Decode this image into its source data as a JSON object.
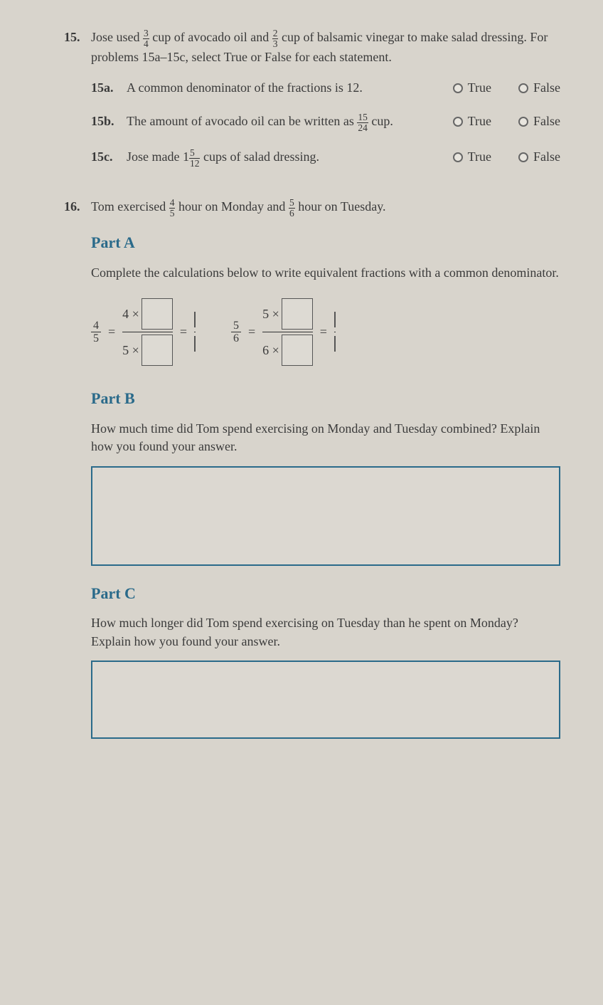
{
  "q15": {
    "number": "15.",
    "text_pre": "Jose used ",
    "frac1_n": "3",
    "frac1_d": "4",
    "text_mid1": " cup of avocado oil and ",
    "frac2_n": "2",
    "frac2_d": "3",
    "text_mid2": " cup of balsamic vinegar to make salad dressing. For problems 15a–15c, select True or False for each statement.",
    "a": {
      "label": "15a.",
      "text": "A common denominator of the fractions is 12."
    },
    "b": {
      "label": "15b.",
      "text_pre": "The amount of avocado oil can be written as ",
      "frac_n": "15",
      "frac_d": "24",
      "text_post": " cup."
    },
    "c": {
      "label": "15c.",
      "text_pre": "Jose made 1",
      "frac_n": "5",
      "frac_d": "12",
      "text_post": " cups of salad dressing."
    },
    "true_label": "True",
    "false_label": "False"
  },
  "q16": {
    "number": "16.",
    "text_pre": "Tom exercised ",
    "frac1_n": "4",
    "frac1_d": "5",
    "text_mid1": " hour on Monday and ",
    "frac2_n": "5",
    "frac2_d": "6",
    "text_post": " hour on Tuesday.",
    "partA": {
      "header": "Part A",
      "instr": "Complete the calculations below to write equivalent fractions with a common denominator.",
      "eq1": {
        "lhs_n": "4",
        "lhs_d": "5",
        "mul_n": "4 ×",
        "mul_d": "5 ×"
      },
      "eq2": {
        "lhs_n": "5",
        "lhs_d": "6",
        "mul_n": "5 ×",
        "mul_d": "6 ×"
      }
    },
    "partB": {
      "header": "Part B",
      "instr": "How much time did Tom spend exercising on Monday and Tuesday combined? Explain how you found your answer."
    },
    "partC": {
      "header": "Part C",
      "instr": "How much longer did Tom spend exercising on Tuesday than he spent on Monday? Explain how you found your answer."
    }
  },
  "colors": {
    "heading": "#2a6a8a",
    "text": "#3a3a3a",
    "box_border": "#2a6a8a",
    "background": "#d8d4cc"
  }
}
